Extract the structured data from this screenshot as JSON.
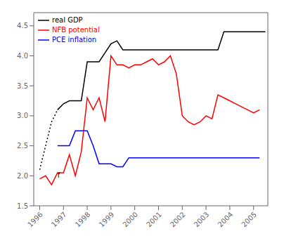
{
  "chart_data": {
    "type": "line",
    "xlim": [
      1995.75,
      2005.6
    ],
    "ylim": [
      1.5,
      4.72
    ],
    "xticks": [
      1996,
      1997,
      1998,
      1999,
      2000,
      2001,
      2002,
      2003,
      2004,
      2005
    ],
    "yticks": [
      1.5,
      {
        "value": 2.0,
        "label": "2.0"
      },
      2.5,
      {
        "value": 3.0,
        "label": "3.0"
      },
      3.5,
      {
        "value": 4.0,
        "label": "4.0"
      },
      4.5
    ],
    "grid": false,
    "legend": "upper left",
    "series": [
      {
        "color": "black",
        "line_style": "dotted",
        "x": [
          1996.0,
          1996.25,
          1996.5,
          1996.75
        ],
        "values": [
          2.1,
          2.5,
          2.9,
          3.1
        ]
      },
      {
        "name": "real GDP",
        "color": "black",
        "line_style": "solid",
        "x": [
          1996.75,
          1997.0,
          1997.25,
          1997.5,
          1997.75,
          1998.0,
          1998.5,
          1999.0,
          1999.25,
          1999.5,
          1999.75,
          2000.0,
          2001.75,
          2002.0,
          2003.5,
          2003.75,
          2004.0,
          2005.5
        ],
        "values": [
          3.1,
          3.2,
          3.25,
          3.25,
          3.25,
          3.9,
          3.9,
          4.2,
          4.25,
          4.1,
          4.1,
          4.1,
          4.1,
          4.1,
          4.1,
          4.4,
          4.4,
          4.4
        ]
      },
      {
        "name": "NFB potential",
        "color": "red",
        "line_style": "solid",
        "x": [
          1996.0,
          1996.25,
          1996.5,
          1996.75,
          1997.0,
          1997.25,
          1997.5,
          1997.75,
          1998.0,
          1998.25,
          1998.5,
          1998.75,
          1999.0,
          1999.25,
          1999.5,
          1999.75,
          2000.0,
          2000.25,
          2000.5,
          2000.75,
          2001.0,
          2001.25,
          2001.5,
          2001.75,
          2002.0,
          2002.25,
          2002.5,
          2002.75,
          2003.0,
          2003.25,
          2003.5,
          2003.75,
          2004.0,
          2004.25,
          2004.5,
          2004.75,
          2005.0,
          2005.25
        ],
        "values": [
          1.95,
          2.0,
          1.85,
          2.05,
          2.05,
          2.35,
          2.0,
          2.4,
          3.3,
          3.1,
          3.3,
          2.9,
          4.0,
          3.85,
          3.85,
          3.8,
          3.85,
          3.85,
          3.9,
          3.95,
          3.85,
          3.9,
          4.0,
          3.7,
          3.0,
          2.9,
          2.85,
          2.9,
          3.0,
          2.95,
          3.35,
          3.3,
          3.25,
          3.2,
          3.15,
          3.1,
          3.05,
          3.1
        ]
      },
      {
        "name": "PCE inflation",
        "color": "blue",
        "line_style": "solid",
        "x": [
          1996.75,
          1997.0,
          1997.25,
          1997.5,
          1997.75,
          1998.0,
          1998.25,
          1998.5,
          1998.75,
          1999.0,
          1999.25,
          1999.5,
          1999.75,
          2000.0,
          2001.75,
          2002.0,
          2003.75,
          2004.0,
          2005.25
        ],
        "values": [
          2.5,
          2.5,
          2.5,
          2.75,
          2.75,
          2.75,
          2.5,
          2.2,
          2.2,
          2.2,
          2.15,
          2.15,
          2.3,
          2.3,
          2.3,
          2.3,
          2.3,
          2.3,
          2.3
        ]
      }
    ],
    "annotations": [
      {
        "text": "f",
        "x": 1996.8,
        "y": 2.08
      }
    ]
  }
}
